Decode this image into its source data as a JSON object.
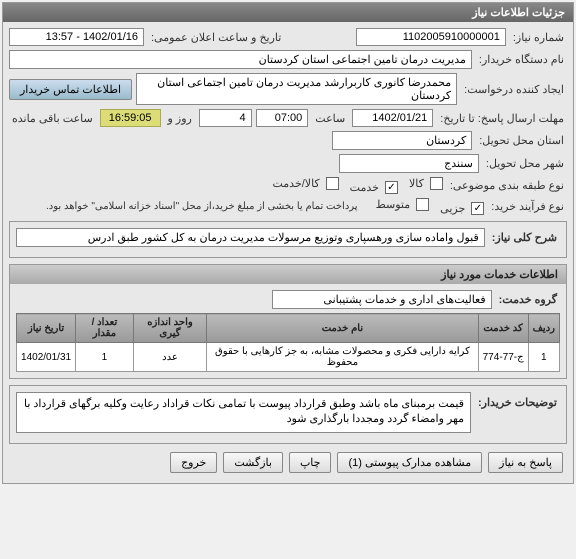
{
  "panel": {
    "title": "جزئیات اطلاعات نیاز",
    "needNumber": {
      "label": "شماره نیاز:",
      "value": "1102005910000001"
    },
    "announceDate": {
      "label": "تاریخ و ساعت اعلان عمومی:",
      "value": "1402/01/16 - 13:57"
    },
    "buyer": {
      "label": "نام دستگاه خریدار:",
      "value": "مدیریت درمان تامین اجتماعی استان کردستان"
    },
    "requester": {
      "label": "ایجاد کننده درخواست:",
      "value": "محمدرضا کانوری کاربرارشد مدیریت درمان تامین اجتماعی استان کردستان"
    },
    "contactBtn": "اطلاعات تماس خریدار",
    "deadline": {
      "label": "مهلت ارسال پاسخ: تا تاریخ:",
      "date": "1402/01/21",
      "timeLabel": "ساعت",
      "time": "07:00",
      "daysLabel": "روز و",
      "days": "4",
      "remain": "16:59:05",
      "remainLabel": "ساعت باقی مانده"
    },
    "province": {
      "label": "استان محل تحویل:",
      "value": "کردستان"
    },
    "city": {
      "label": "شهر محل تحویل:",
      "value": "سنندج"
    },
    "subjectType": {
      "label": "نوع طبقه بندی موضوعی:",
      "options": [
        {
          "label": "کالا",
          "checked": false
        },
        {
          "label": "خدمت",
          "checked": true
        },
        {
          "label": "کالا/خدمت",
          "checked": false
        }
      ]
    },
    "process": {
      "label": "نوع فرآیند خرید:",
      "options": [
        {
          "label": "جزیی",
          "checked": true
        },
        {
          "label": "متوسط",
          "checked": false
        }
      ],
      "note": "پرداخت تمام یا بخشی از مبلغ خرید،از محل \"اسناد خزانه اسلامی\" خواهد بود."
    }
  },
  "desc": {
    "title": "شرح کلی نیاز:",
    "value": "قبول واماده سازی ورهسپاری وتوزیع مرسولات مدیریت درمان به کل کشور طبق ادرس"
  },
  "services": {
    "header": "اطلاعات خدمات مورد نیاز",
    "group": {
      "label": "گروه خدمت:",
      "value": "فعالیت‌های اداری و خدمات پشتیبانی"
    },
    "table": {
      "columns": [
        "ردیف",
        "کد خدمت",
        "نام خدمت",
        "واحد اندازه گیری",
        "تعداد / مقدار",
        "تاریخ نیاز"
      ],
      "rows": [
        [
          "1",
          "ج-77-774",
          "کرایه دارایی فکری و محصولات مشابه، به جز کارهایی با حقوق محفوظ",
          "عدد",
          "1",
          "1402/01/31"
        ]
      ]
    }
  },
  "buyerNotes": {
    "label": "توضیحات خریدار:",
    "value": "قیمت برمبنای ماه باشد وطبق قرارداد پیوست با تمامی نکات قراداد رعایت وکلیه برگهای قرارداد با مهر وامضاء گردد ومجددا بارگذاری شود"
  },
  "buttons": {
    "reply": "پاسخ به نیاز",
    "attachments": "مشاهده مدارک پیوستی (1)",
    "print": "چاپ",
    "back": "بازگشت",
    "exit": "خروج"
  }
}
